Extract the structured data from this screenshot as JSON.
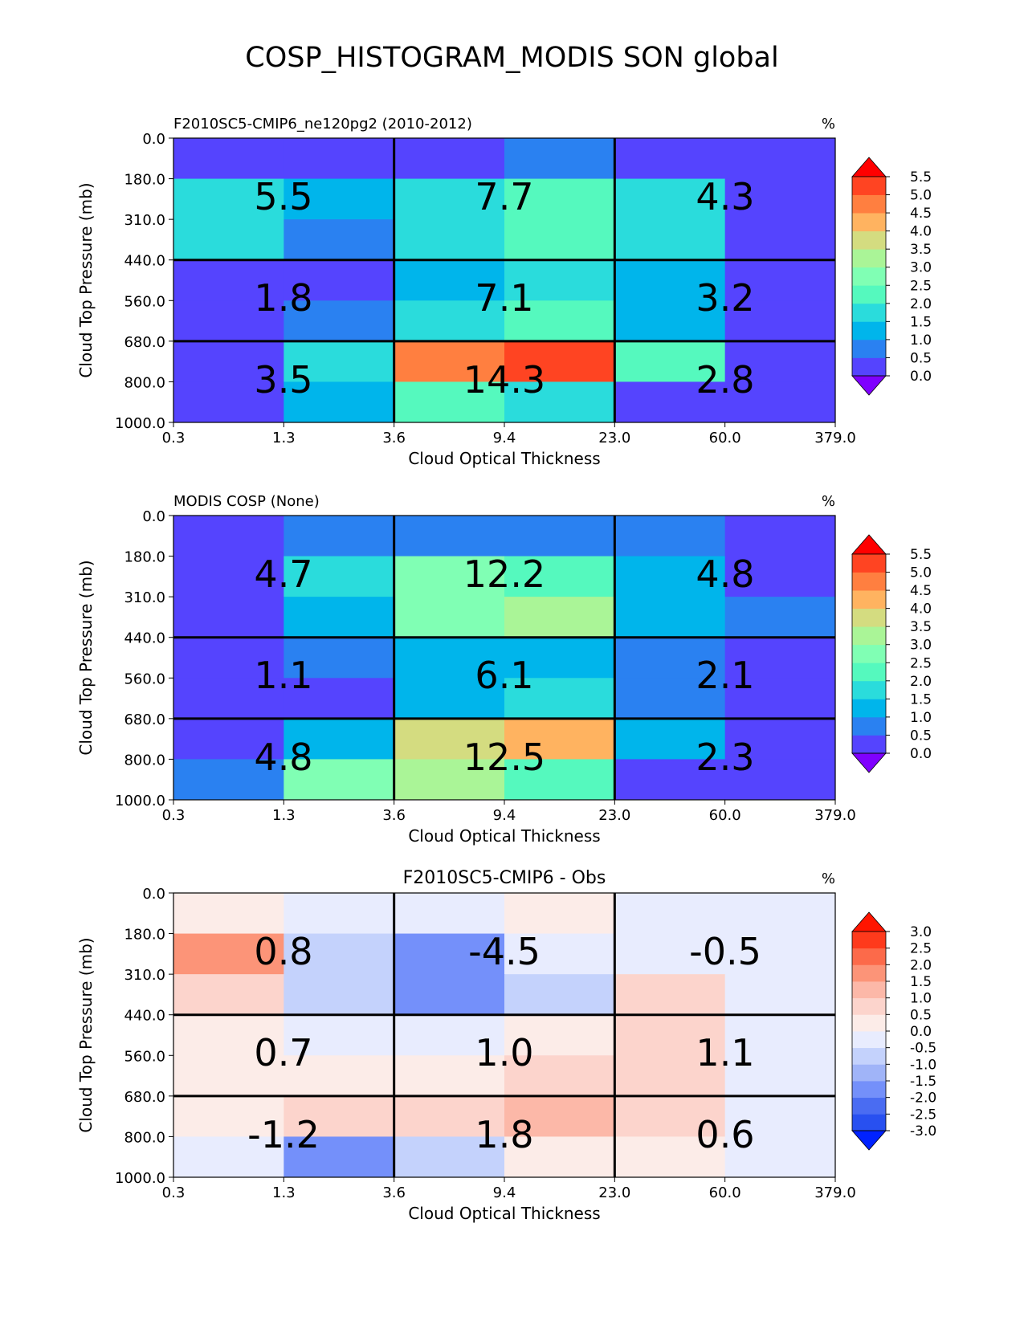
{
  "title": "COSP_HISTOGRAM_MODIS SON global",
  "palettes": {
    "seq": [
      "#7f00ff",
      "#5544fe",
      "#2a81f1",
      "#00b5eb",
      "#2adcdc",
      "#55f9be",
      "#80ffb4",
      "#aaf597",
      "#d4dc80",
      "#ffb360",
      "#ff7f40",
      "#ff4422",
      "#ff0000"
    ],
    "diff": [
      "#0022ff",
      "#2850f0",
      "#4a6cf2",
      "#7490fa",
      "#a0b4f8",
      "#c4d2fc",
      "#e8ecfe",
      "#fcece8",
      "#fcd4cc",
      "#fcb8a8",
      "#fc9478",
      "#fc6a4a",
      "#fe3a1c",
      "#ff1500"
    ]
  },
  "chart_data": [
    {
      "type": "heatmap",
      "panel_title": "F2010SC5-CMIP6_ne120pg2 (2010-2012)",
      "title_align": "left",
      "unit_label": "%",
      "xlabel": "Cloud Optical Thickness",
      "ylabel": "Cloud Top Pressure (mb)",
      "x_edges": [
        "0.3",
        "1.3",
        "3.6",
        "9.4",
        "23.0",
        "60.0",
        "379.0"
      ],
      "y_edges": [
        "0.0",
        "180.0",
        "310.0",
        "440.0",
        "560.0",
        "680.0",
        "800.0",
        "1000.0"
      ],
      "cells": [
        [
          0.3,
          0.3,
          0.2,
          0.8,
          0.3,
          0.4
        ],
        [
          1.8,
          1.4,
          1.5,
          2.0,
          1.6,
          0.2
        ],
        [
          1.5,
          0.7,
          1.6,
          2.4,
          1.7,
          0.3
        ],
        [
          0.3,
          0.3,
          1.4,
          1.9,
          1.4,
          0.4
        ],
        [
          0.4,
          0.8,
          1.8,
          2.2,
          1.4,
          0.3
        ],
        [
          0.2,
          1.9,
          4.7,
          5.3,
          2.4,
          0.3
        ],
        [
          0.3,
          1.4,
          2.3,
          1.9,
          0.3,
          0.3
        ]
      ],
      "totals": [
        [
          "5.5",
          "7.7",
          "4.3"
        ],
        [
          "1.8",
          "7.1",
          "3.2"
        ],
        [
          "3.5",
          "14.3",
          "2.8"
        ]
      ],
      "colorbar": {
        "palette": "seq",
        "ticks": [
          "0.0",
          "0.5",
          "1.0",
          "1.5",
          "2.0",
          "2.5",
          "3.0",
          "3.5",
          "4.0",
          "4.5",
          "5.0",
          "5.5"
        ],
        "min": 0.0,
        "max": 5.5
      }
    },
    {
      "type": "heatmap",
      "panel_title": "MODIS COSP (None)",
      "title_align": "left",
      "unit_label": "%",
      "xlabel": "Cloud Optical Thickness",
      "ylabel": "Cloud Top Pressure (mb)",
      "x_edges": [
        "0.3",
        "1.3",
        "3.6",
        "9.4",
        "23.0",
        "60.0",
        "379.0"
      ],
      "y_edges": [
        "0.0",
        "180.0",
        "310.0",
        "440.0",
        "560.0",
        "680.0",
        "800.0",
        "1000.0"
      ],
      "cells": [
        [
          0.3,
          0.8,
          0.7,
          0.8,
          0.8,
          0.3
        ],
        [
          0.3,
          1.9,
          2.7,
          2.3,
          1.4,
          0.3
        ],
        [
          0.3,
          1.4,
          2.7,
          3.2,
          1.3,
          0.8
        ],
        [
          0.3,
          0.7,
          1.3,
          1.4,
          0.8,
          0.3
        ],
        [
          0.3,
          0.3,
          1.4,
          1.9,
          0.8,
          0.3
        ],
        [
          0.3,
          1.3,
          3.6,
          4.0,
          1.4,
          0.3
        ],
        [
          0.7,
          2.6,
          3.1,
          2.0,
          0.3,
          0.3
        ]
      ],
      "totals": [
        [
          "4.7",
          "12.2",
          "4.8"
        ],
        [
          "1.1",
          "6.1",
          "2.1"
        ],
        [
          "4.8",
          "12.5",
          "2.3"
        ]
      ],
      "colorbar": {
        "palette": "seq",
        "ticks": [
          "0.0",
          "0.5",
          "1.0",
          "1.5",
          "2.0",
          "2.5",
          "3.0",
          "3.5",
          "4.0",
          "4.5",
          "5.0",
          "5.5"
        ],
        "min": 0.0,
        "max": 5.5
      }
    },
    {
      "type": "heatmap",
      "panel_title": "F2010SC5-CMIP6 - Obs",
      "title_align": "center",
      "unit_label": "%",
      "xlabel": "Cloud Optical Thickness",
      "ylabel": "Cloud Top Pressure (mb)",
      "x_edges": [
        "0.3",
        "1.3",
        "3.6",
        "9.4",
        "23.0",
        "60.0",
        "379.0"
      ],
      "y_edges": [
        "0.0",
        "180.0",
        "310.0",
        "440.0",
        "560.0",
        "680.0",
        "800.0",
        "1000.0"
      ],
      "cells": [
        [
          0.1,
          -0.2,
          -0.2,
          0.1,
          -0.2,
          -0.2
        ],
        [
          1.5,
          -0.7,
          -1.7,
          -0.2,
          -0.2,
          -0.2
        ],
        [
          0.6,
          -0.7,
          -1.7,
          -0.7,
          0.6,
          -0.2
        ],
        [
          0.1,
          -0.2,
          -0.2,
          0.1,
          0.6,
          -0.2
        ],
        [
          0.1,
          0.1,
          0.1,
          0.6,
          0.6,
          -0.2
        ],
        [
          0.1,
          0.6,
          0.6,
          1.2,
          0.6,
          -0.2
        ],
        [
          -0.2,
          -1.7,
          -0.7,
          0.1,
          0.1,
          -0.2
        ]
      ],
      "totals": [
        [
          "0.8",
          "-4.5",
          "-0.5"
        ],
        [
          "0.7",
          "1.0",
          "1.1"
        ],
        [
          "-1.2",
          "1.8",
          "0.6"
        ]
      ],
      "colorbar": {
        "palette": "diff",
        "ticks": [
          "-3.0",
          "-2.5",
          "-2.0",
          "-1.5",
          "-1.0",
          "-0.5",
          "0.0",
          "0.5",
          "1.0",
          "1.5",
          "2.0",
          "2.5",
          "3.0"
        ],
        "min": -3.0,
        "max": 3.0
      }
    }
  ]
}
